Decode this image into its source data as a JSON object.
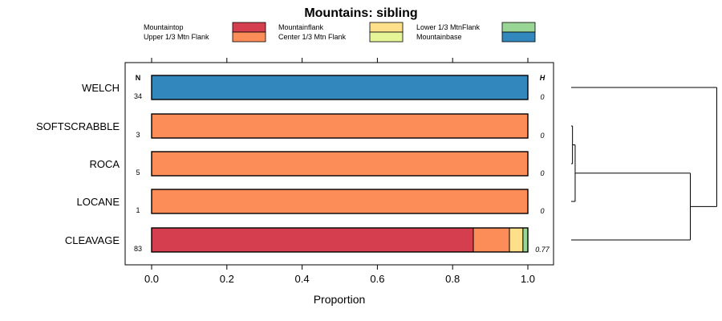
{
  "chart_data": {
    "type": "bar",
    "title": "Mountains: sibling",
    "xlabel": "Proportion",
    "ylabel": "",
    "xlim": [
      0,
      1
    ],
    "xticks": [
      0.0,
      0.2,
      0.4,
      0.6,
      0.8,
      1.0
    ],
    "xtick_labels": [
      "0.0",
      "0.2",
      "0.4",
      "0.6",
      "0.8",
      "1.0"
    ],
    "n_header": "N",
    "h_header": "H",
    "legend": [
      {
        "name": "Mountaintop",
        "color": "#d53e4f"
      },
      {
        "name": "Upper 1/3 Mtn Flank",
        "color": "#fc8d59"
      },
      {
        "name": "Mountainflank",
        "color": "#fee08b"
      },
      {
        "name": "Center 1/3 Mtn Flank",
        "color": "#e6f598"
      },
      {
        "name": "Lower 1/3 MtnFlank",
        "color": "#99d594"
      },
      {
        "name": "Mountainbase",
        "color": "#3288bd"
      }
    ],
    "categories": [
      "WELCH",
      "SOFTSCRABBLE",
      "ROCA",
      "LOCANE",
      "CLEAVAGE"
    ],
    "n_values": [
      "34",
      "3",
      "5",
      "1",
      "83"
    ],
    "h_values": [
      "0",
      "0",
      "0",
      "0",
      "0.77"
    ],
    "series": [
      {
        "name": "Mountaintop",
        "values": [
          0,
          0,
          0,
          0,
          0.855
        ]
      },
      {
        "name": "Upper 1/3 Mtn Flank",
        "values": [
          0,
          1,
          1,
          1,
          0.096
        ]
      },
      {
        "name": "Mountainflank",
        "values": [
          0,
          0,
          0,
          0,
          0.036
        ]
      },
      {
        "name": "Center 1/3 Mtn Flank",
        "values": [
          0,
          0,
          0,
          0,
          0
        ]
      },
      {
        "name": "Lower 1/3 MtnFlank",
        "values": [
          0,
          0,
          0,
          0,
          0.013
        ]
      },
      {
        "name": "Mountainbase",
        "values": [
          1,
          0,
          0,
          0,
          0
        ]
      }
    ],
    "dendrogram": {
      "leaves": [
        "WELCH",
        "SOFTSCRABBLE",
        "ROCA",
        "LOCANE",
        "CLEAVAGE"
      ],
      "merges": [
        {
          "left": "SOFTSCRABBLE",
          "right": "ROCA",
          "height": 0.005
        },
        {
          "left": "SOFTSCRABBLE+ROCA",
          "right": "LOCANE",
          "height": 0.015
        },
        {
          "left": "SOFTSCRABBLE+ROCA+LOCANE",
          "right": "CLEAVAGE",
          "height": 0.45
        },
        {
          "left": "WELCH",
          "right": "SOFTSCRABBLE+ROCA+LOCANE+CLEAVAGE",
          "height": 0.55
        }
      ]
    }
  }
}
